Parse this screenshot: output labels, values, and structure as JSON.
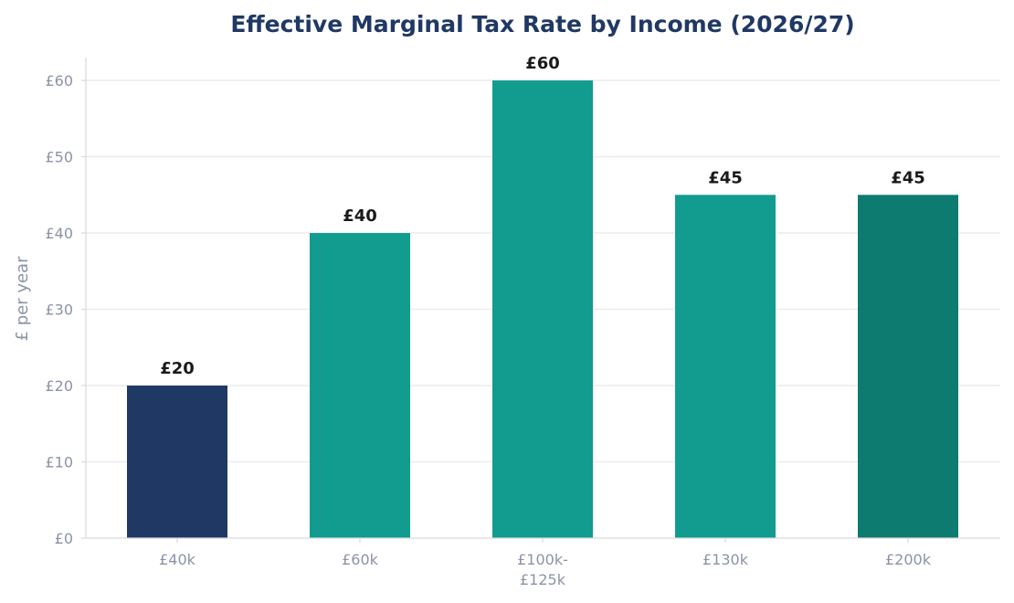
{
  "colors": {
    "title": "#203864",
    "axis_text": "#8c93a6",
    "grid": "#ececec",
    "spine": "#d9d9d9",
    "data_label": "#1a1a1a"
  },
  "chart_data": {
    "type": "bar",
    "title": "Effective Marginal Tax Rate by Income (2026/27)",
    "xlabel": "",
    "ylabel": "£ per year",
    "categories": [
      [
        "£40k"
      ],
      [
        "£60k"
      ],
      [
        "£100k-",
        "£125k"
      ],
      [
        "£130k"
      ],
      [
        "£200k"
      ]
    ],
    "values": [
      20,
      40,
      60,
      45,
      45
    ],
    "value_labels": [
      "£20",
      "£40",
      "£60",
      "£45",
      "£45"
    ],
    "bar_colors": [
      "#203864",
      "#119c8f",
      "#119c8f",
      "#119c8f",
      "#0e7b71"
    ],
    "ylim": [
      0,
      63
    ],
    "yticks": [
      0,
      10,
      20,
      30,
      40,
      50,
      60
    ],
    "ytick_labels": [
      "£0",
      "£10",
      "£20",
      "£30",
      "£40",
      "£50",
      "£60"
    ],
    "grid": true,
    "legend": "none"
  }
}
